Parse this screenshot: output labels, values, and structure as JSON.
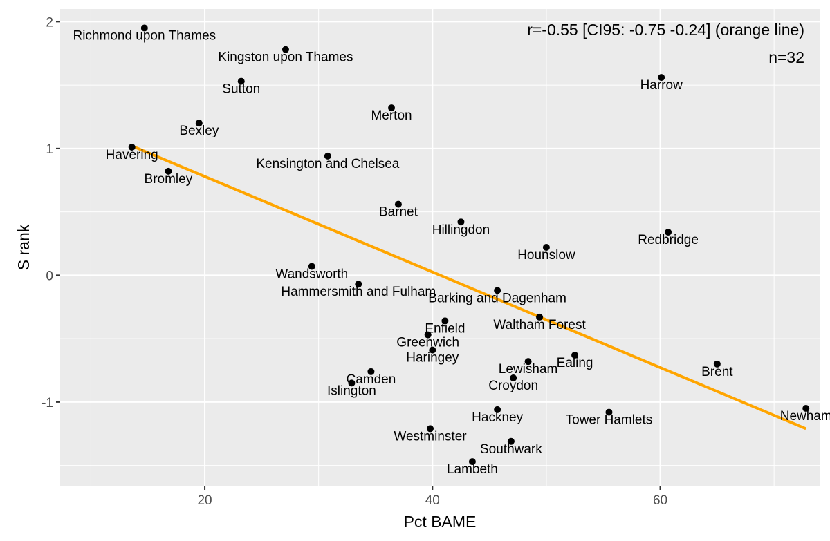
{
  "chart_data": {
    "type": "scatter",
    "title": "",
    "xlabel": "Pct BAME",
    "ylabel": "S rank",
    "xlim": [
      7.3,
      74.0
    ],
    "ylim": [
      -1.66,
      2.1
    ],
    "x_ticks": [
      20,
      40,
      60
    ],
    "x_tick_labels": [
      "20",
      "40",
      "60"
    ],
    "x_minor_ticks": [
      10,
      30,
      50,
      70
    ],
    "y_ticks": [
      -1,
      0,
      1,
      2
    ],
    "y_tick_labels": [
      "-1",
      "0",
      "1",
      "2"
    ],
    "y_minor_ticks": [
      -1.5,
      -0.5,
      0.5,
      1.5
    ],
    "grid": true,
    "panel_background": "#ebebeb",
    "grid_color": "#ffffff",
    "point_color": "#000000",
    "fit_line": {
      "color": "#ffa500",
      "x": [
        13.6,
        72.8
      ],
      "y": [
        1.02,
        -1.21
      ],
      "label": "orange line"
    },
    "annotations": [
      "r=-0.55 [CI95: -0.75 -0.24] (orange line)",
      "n=32"
    ],
    "points": [
      {
        "name": "Richmond upon Thames",
        "x": 14.7,
        "y": 1.95
      },
      {
        "name": "Kingston upon Thames",
        "x": 27.1,
        "y": 1.78
      },
      {
        "name": "Sutton",
        "x": 23.2,
        "y": 1.53
      },
      {
        "name": "Harrow",
        "x": 60.1,
        "y": 1.56
      },
      {
        "name": "Merton",
        "x": 36.4,
        "y": 1.32
      },
      {
        "name": "Bexley",
        "x": 19.5,
        "y": 1.2
      },
      {
        "name": "Havering",
        "x": 13.6,
        "y": 1.01
      },
      {
        "name": "Kensington and Chelsea",
        "x": 30.8,
        "y": 0.94
      },
      {
        "name": "Bromley",
        "x": 16.8,
        "y": 0.82
      },
      {
        "name": "Barnet",
        "x": 37.0,
        "y": 0.56
      },
      {
        "name": "Hillingdon",
        "x": 42.5,
        "y": 0.42
      },
      {
        "name": "Redbridge",
        "x": 60.7,
        "y": 0.34
      },
      {
        "name": "Hounslow",
        "x": 50.0,
        "y": 0.22
      },
      {
        "name": "Wandsworth",
        "x": 29.4,
        "y": 0.07
      },
      {
        "name": "Hammersmith and Fulham",
        "x": 33.5,
        "y": -0.07
      },
      {
        "name": "Barking and Dagenham",
        "x": 45.7,
        "y": -0.12
      },
      {
        "name": "Waltham Forest",
        "x": 49.4,
        "y": -0.33
      },
      {
        "name": "Enfield",
        "x": 41.1,
        "y": -0.36
      },
      {
        "name": "Greenwich",
        "x": 39.6,
        "y": -0.47
      },
      {
        "name": "Haringey",
        "x": 40.0,
        "y": -0.59
      },
      {
        "name": "Ealing",
        "x": 52.5,
        "y": -0.63
      },
      {
        "name": "Lewisham",
        "x": 48.4,
        "y": -0.68
      },
      {
        "name": "Brent",
        "x": 65.0,
        "y": -0.7
      },
      {
        "name": "Camden",
        "x": 34.6,
        "y": -0.76
      },
      {
        "name": "Croydon",
        "x": 47.1,
        "y": -0.81
      },
      {
        "name": "Islington",
        "x": 32.9,
        "y": -0.85
      },
      {
        "name": "Newham",
        "x": 72.8,
        "y": -1.05
      },
      {
        "name": "Hackney",
        "x": 45.7,
        "y": -1.06
      },
      {
        "name": "Tower Hamlets",
        "x": 55.5,
        "y": -1.08
      },
      {
        "name": "Westminster",
        "x": 39.8,
        "y": -1.21
      },
      {
        "name": "Southwark",
        "x": 46.9,
        "y": -1.31
      },
      {
        "name": "Lambeth",
        "x": 43.5,
        "y": -1.47
      }
    ]
  }
}
